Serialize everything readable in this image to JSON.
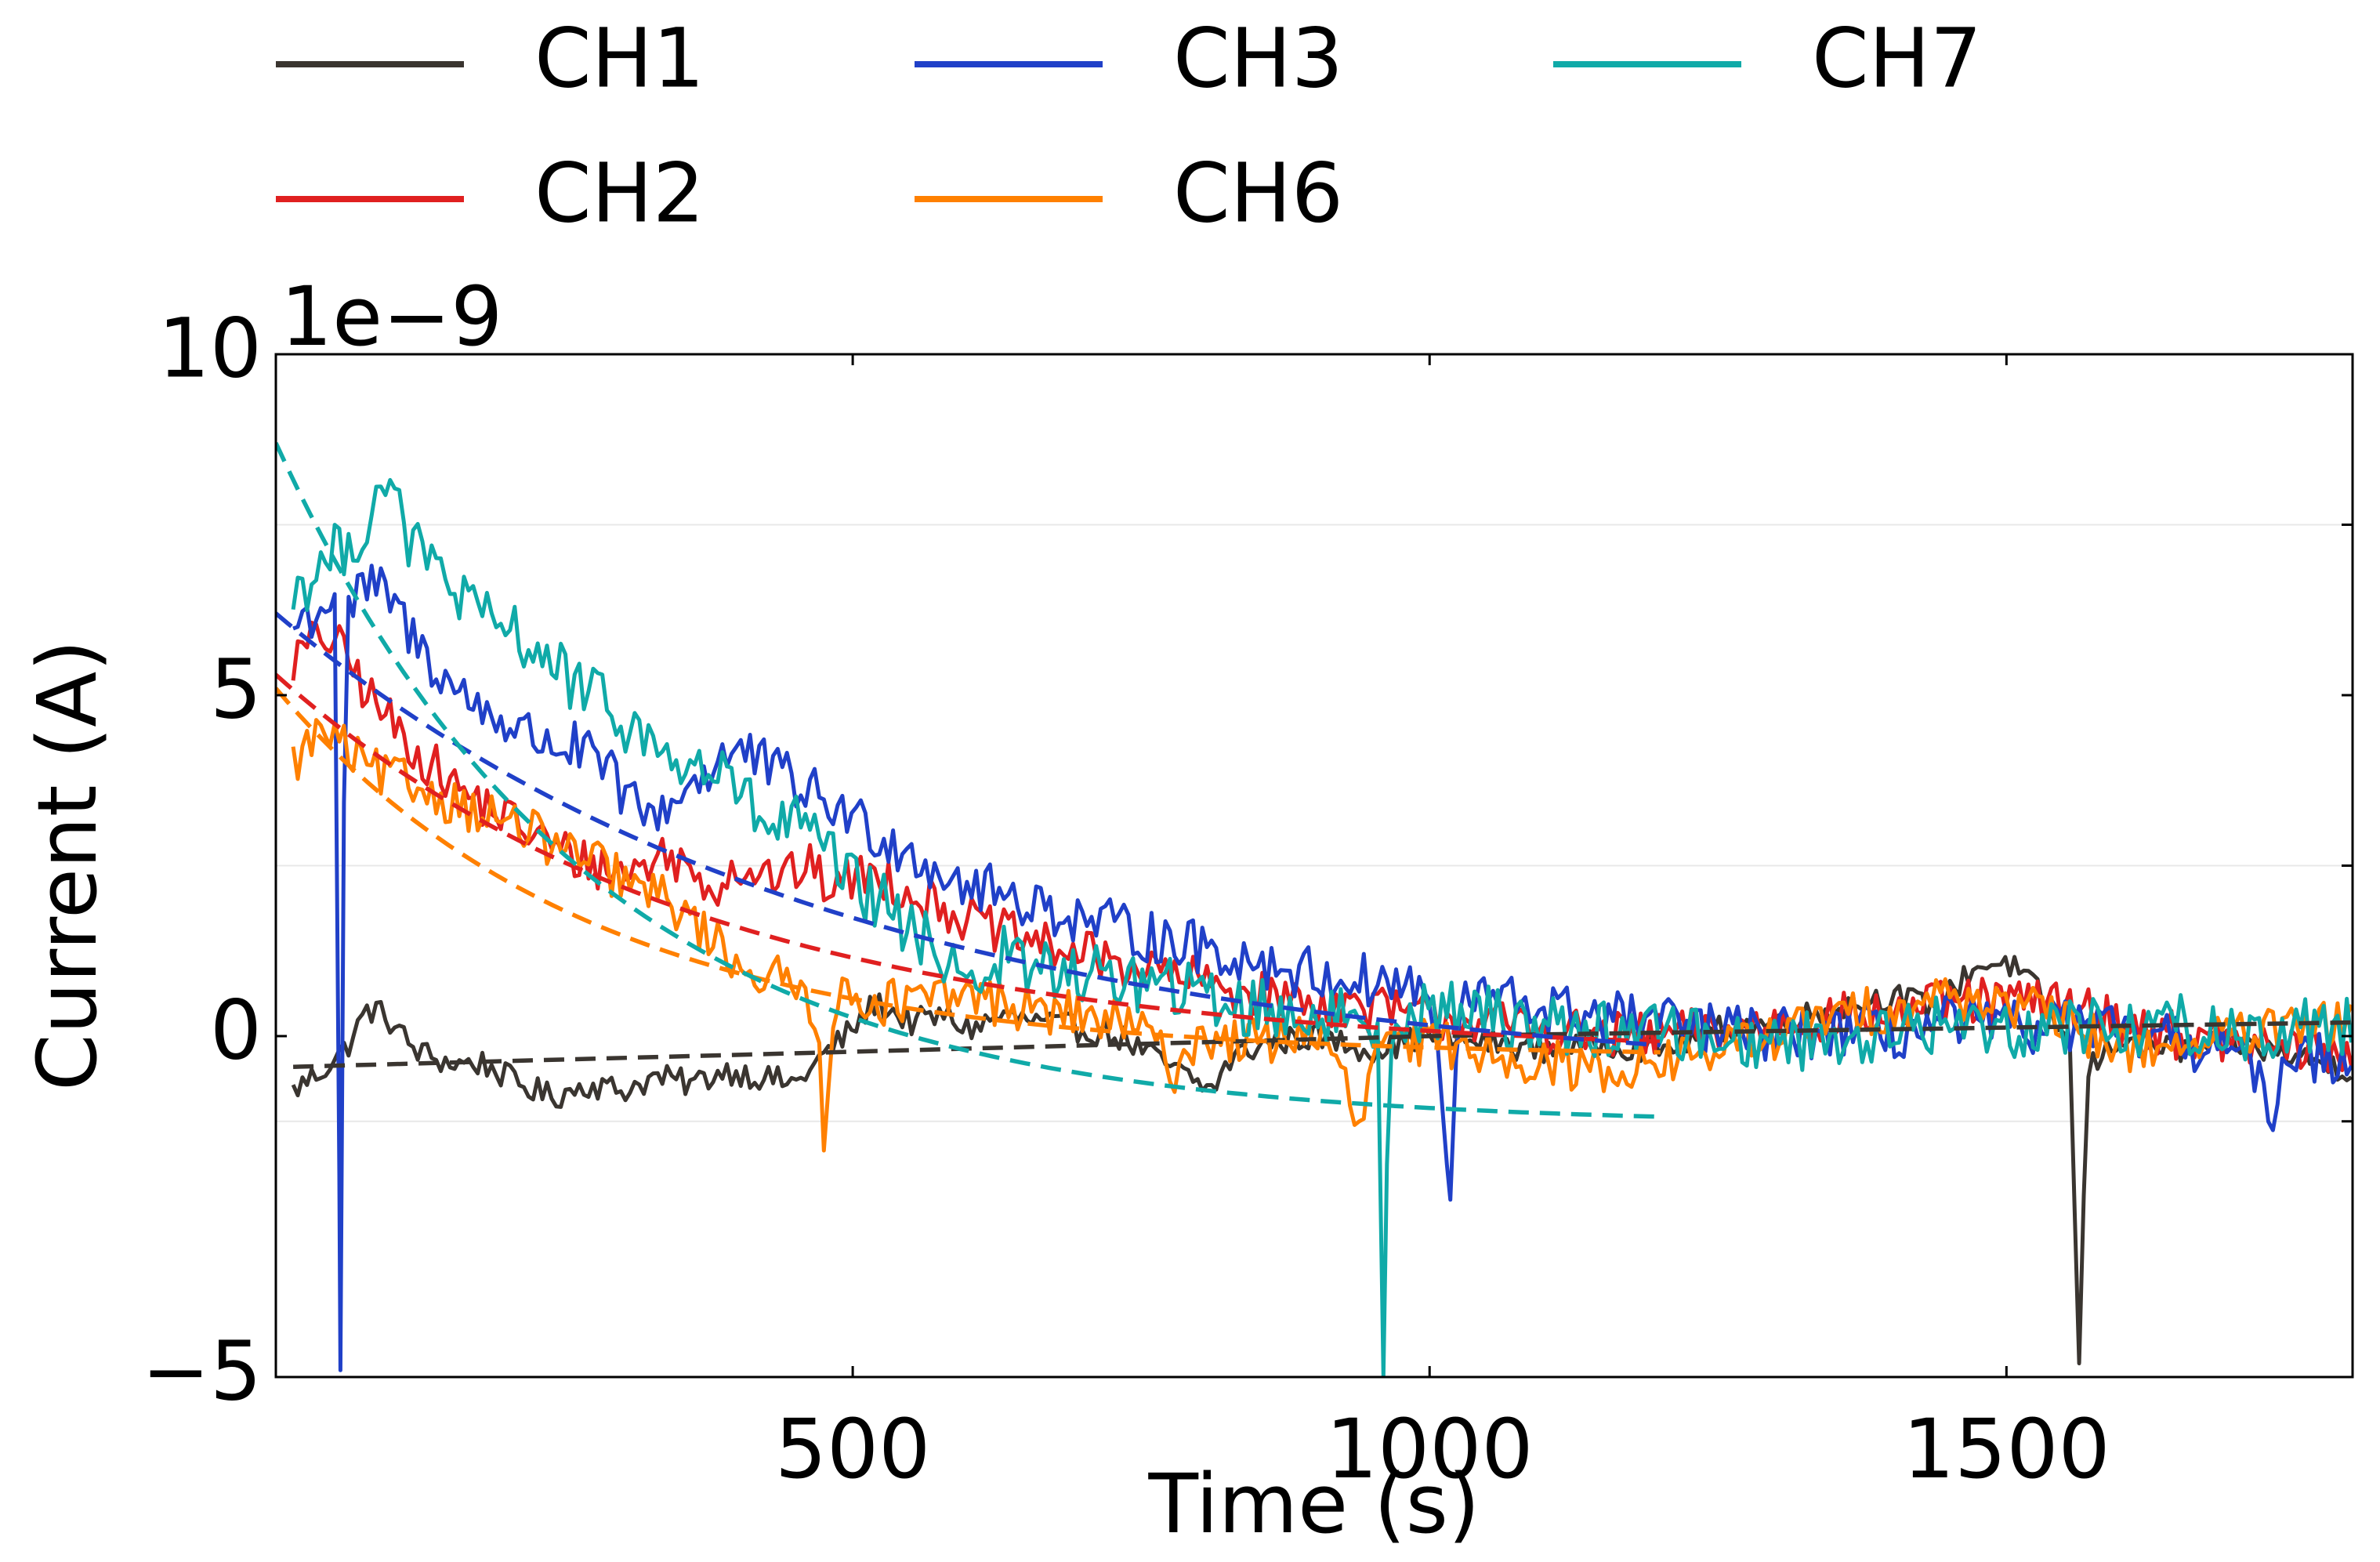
{
  "chart_data": {
    "type": "line",
    "title": "",
    "xlabel": "Time (s)",
    "ylabel": "Current (A)",
    "y_offset_label": "1e−9",
    "xlim": [
      0,
      1800
    ],
    "ylim": [
      -5,
      10
    ],
    "y_scale_factor": 1e-09,
    "xticks": [
      {
        "value": 500,
        "label": "500"
      },
      {
        "value": 1000,
        "label": "1000"
      },
      {
        "value": 1500,
        "label": "1500"
      }
    ],
    "yticks": [
      {
        "value": -5,
        "label": "−5"
      },
      {
        "value": 0,
        "label": "0"
      },
      {
        "value": 5,
        "label": "5"
      },
      {
        "value": 10,
        "label": "10"
      }
    ],
    "legend_position": "top-left, above plot, 3 columns",
    "grid": false,
    "series": [
      {
        "name": "CH1",
        "color": "#3a3530",
        "start_x": 15,
        "end_x": 1800,
        "points": [
          [
            15,
            -0.8
          ],
          [
            40,
            -0.5
          ],
          [
            60,
            -0.2
          ],
          [
            80,
            0.4
          ],
          [
            95,
            0.3
          ],
          [
            120,
            -0.2
          ],
          [
            150,
            -0.4
          ],
          [
            180,
            -0.4
          ],
          [
            210,
            -0.7
          ],
          [
            240,
            -0.9
          ],
          [
            270,
            -0.7
          ],
          [
            300,
            -0.8
          ],
          [
            330,
            -0.6
          ],
          [
            360,
            -0.7
          ],
          [
            390,
            -0.5
          ],
          [
            420,
            -0.6
          ],
          [
            450,
            -0.7
          ],
          [
            480,
            -0.2
          ],
          [
            500,
            0.1
          ],
          [
            520,
            0.5
          ],
          [
            550,
            0.2
          ],
          [
            580,
            0.3
          ],
          [
            600,
            0.1
          ],
          [
            630,
            0.3
          ],
          [
            660,
            0.2
          ],
          [
            700,
            0.1
          ],
          [
            730,
            0.0
          ],
          [
            760,
            -0.3
          ],
          [
            790,
            -0.6
          ],
          [
            810,
            -0.8
          ],
          [
            830,
            -0.3
          ],
          [
            860,
            -0.1
          ],
          [
            900,
            0.0
          ],
          [
            950,
            -0.2
          ],
          [
            1000,
            0.0
          ],
          [
            1050,
            -0.1
          ],
          [
            1100,
            -0.2
          ],
          [
            1150,
            -0.1
          ],
          [
            1200,
            -0.2
          ],
          [
            1250,
            0.1
          ],
          [
            1300,
            0.2
          ],
          [
            1350,
            0.4
          ],
          [
            1400,
            0.6
          ],
          [
            1440,
            0.4
          ],
          [
            1470,
            1.0
          ],
          [
            1500,
            1.1
          ],
          [
            1530,
            0.6
          ],
          [
            1555,
            -0.2
          ],
          [
            1563,
            -4.8
          ],
          [
            1570,
            -0.5
          ],
          [
            1600,
            0.0
          ],
          [
            1650,
            -0.2
          ],
          [
            1700,
            -0.1
          ],
          [
            1750,
            -0.3
          ],
          [
            1800,
            -0.5
          ]
        ],
        "noise": 0.2,
        "fit": {
          "type": "linear",
          "points": [
            [
              15,
              -0.45
            ],
            [
              1000,
              0.0
            ],
            [
              1800,
              0.2
            ]
          ],
          "end_x": 1800
        }
      },
      {
        "name": "CH2",
        "color": "#e02020",
        "start_x": 15,
        "end_x": 1800,
        "points": [
          [
            15,
            5.5
          ],
          [
            40,
            5.9
          ],
          [
            60,
            5.6
          ],
          [
            80,
            5.0
          ],
          [
            100,
            4.6
          ],
          [
            120,
            4.2
          ],
          [
            140,
            3.9
          ],
          [
            160,
            3.6
          ],
          [
            180,
            3.4
          ],
          [
            200,
            3.2
          ],
          [
            220,
            3.0
          ],
          [
            240,
            2.8
          ],
          [
            260,
            2.6
          ],
          [
            280,
            2.5
          ],
          [
            300,
            2.4
          ],
          [
            320,
            2.5
          ],
          [
            340,
            2.7
          ],
          [
            360,
            2.4
          ],
          [
            380,
            2.2
          ],
          [
            400,
            2.5
          ],
          [
            420,
            2.4
          ],
          [
            440,
            2.3
          ],
          [
            460,
            2.5
          ],
          [
            480,
            2.2
          ],
          [
            500,
            2.3
          ],
          [
            520,
            2.4
          ],
          [
            550,
            2.1
          ],
          [
            580,
            1.9
          ],
          [
            600,
            1.7
          ],
          [
            650,
            1.4
          ],
          [
            700,
            1.2
          ],
          [
            750,
            1.0
          ],
          [
            800,
            0.8
          ],
          [
            850,
            0.6
          ],
          [
            900,
            0.5
          ],
          [
            950,
            0.4
          ],
          [
            1000,
            0.3
          ],
          [
            1050,
            0.2
          ],
          [
            1100,
            0.1
          ],
          [
            1150,
            0.0
          ],
          [
            1200,
            0.0
          ],
          [
            1250,
            0.1
          ],
          [
            1300,
            0.2
          ],
          [
            1350,
            0.3
          ],
          [
            1400,
            0.3
          ],
          [
            1450,
            0.5
          ],
          [
            1500,
            0.5
          ],
          [
            1550,
            0.5
          ],
          [
            1600,
            0.2
          ],
          [
            1650,
            0.0
          ],
          [
            1700,
            -0.1
          ],
          [
            1750,
            -0.2
          ],
          [
            1800,
            -0.3
          ]
        ],
        "noise": 0.35,
        "fit": {
          "type": "exp",
          "A": 5.6,
          "tau": 370,
          "c": -0.3,
          "end_x": 1200
        }
      },
      {
        "name": "CH3",
        "color": "#2040c8",
        "start_x": 15,
        "end_x": 1800,
        "points": [
          [
            15,
            6.0
          ],
          [
            40,
            6.3
          ],
          [
            52,
            6.5
          ],
          [
            56,
            -4.9
          ],
          [
            60,
            6.2
          ],
          [
            80,
            6.6
          ],
          [
            100,
            6.4
          ],
          [
            120,
            5.8
          ],
          [
            140,
            5.4
          ],
          [
            160,
            5.0
          ],
          [
            180,
            4.8
          ],
          [
            200,
            4.6
          ],
          [
            220,
            4.4
          ],
          [
            240,
            4.3
          ],
          [
            260,
            4.2
          ],
          [
            280,
            4.0
          ],
          [
            300,
            3.6
          ],
          [
            320,
            3.2
          ],
          [
            340,
            3.4
          ],
          [
            360,
            3.7
          ],
          [
            380,
            4.0
          ],
          [
            400,
            4.2
          ],
          [
            420,
            4.0
          ],
          [
            440,
            3.8
          ],
          [
            460,
            3.6
          ],
          [
            480,
            3.4
          ],
          [
            500,
            3.2
          ],
          [
            520,
            3.0
          ],
          [
            540,
            2.8
          ],
          [
            560,
            2.6
          ],
          [
            580,
            2.4
          ],
          [
            600,
            2.2
          ],
          [
            650,
            2.0
          ],
          [
            700,
            1.7
          ],
          [
            750,
            1.5
          ],
          [
            800,
            1.3
          ],
          [
            850,
            1.1
          ],
          [
            900,
            0.9
          ],
          [
            950,
            0.8
          ],
          [
            1000,
            0.7
          ],
          [
            1018,
            -2.4
          ],
          [
            1025,
            0.5
          ],
          [
            1050,
            0.6
          ],
          [
            1100,
            0.4
          ],
          [
            1150,
            0.3
          ],
          [
            1200,
            0.2
          ],
          [
            1250,
            0.1
          ],
          [
            1300,
            0.0
          ],
          [
            1350,
            0.1
          ],
          [
            1400,
            0.0
          ],
          [
            1450,
            0.2
          ],
          [
            1500,
            0.1
          ],
          [
            1550,
            0.2
          ],
          [
            1600,
            0.0
          ],
          [
            1650,
            -0.1
          ],
          [
            1700,
            -0.2
          ],
          [
            1730,
            -1.1
          ],
          [
            1740,
            -0.3
          ],
          [
            1800,
            -0.3
          ]
        ],
        "noise": 0.4,
        "fit": {
          "type": "exp",
          "A": 6.9,
          "tau": 480,
          "c": -0.7,
          "end_x": 1200
        }
      },
      {
        "name": "CH6",
        "color": "#ff8000",
        "start_x": 15,
        "end_x": 1800,
        "points": [
          [
            15,
            4.0
          ],
          [
            40,
            4.5
          ],
          [
            60,
            4.2
          ],
          [
            80,
            3.9
          ],
          [
            100,
            3.8
          ],
          [
            130,
            3.6
          ],
          [
            160,
            3.4
          ],
          [
            190,
            3.2
          ],
          [
            220,
            3.0
          ],
          [
            250,
            2.7
          ],
          [
            280,
            2.5
          ],
          [
            300,
            2.3
          ],
          [
            320,
            2.1
          ],
          [
            340,
            2.0
          ],
          [
            360,
            1.7
          ],
          [
            380,
            1.4
          ],
          [
            400,
            1.1
          ],
          [
            420,
            0.9
          ],
          [
            440,
            0.8
          ],
          [
            460,
            0.6
          ],
          [
            470,
            0.3
          ],
          [
            476,
            -1.7
          ],
          [
            482,
            0.4
          ],
          [
            500,
            0.6
          ],
          [
            530,
            0.5
          ],
          [
            560,
            0.5
          ],
          [
            600,
            0.6
          ],
          [
            650,
            0.4
          ],
          [
            700,
            0.3
          ],
          [
            750,
            0.1
          ],
          [
            780,
            -0.5
          ],
          [
            800,
            0.0
          ],
          [
            850,
            -0.1
          ],
          [
            900,
            0.1
          ],
          [
            930,
            -0.8
          ],
          [
            940,
            -1.6
          ],
          [
            950,
            -0.2
          ],
          [
            1000,
            -0.1
          ],
          [
            1050,
            -0.2
          ],
          [
            1100,
            -0.4
          ],
          [
            1150,
            -0.5
          ],
          [
            1200,
            -0.4
          ],
          [
            1250,
            -0.2
          ],
          [
            1300,
            0.0
          ],
          [
            1350,
            0.3
          ],
          [
            1400,
            0.4
          ],
          [
            1450,
            0.6
          ],
          [
            1500,
            0.5
          ],
          [
            1550,
            0.2
          ],
          [
            1600,
            -0.2
          ],
          [
            1650,
            -0.1
          ],
          [
            1700,
            0.0
          ],
          [
            1750,
            0.1
          ],
          [
            1800,
            0.2
          ]
        ],
        "noise": 0.35,
        "fit": {
          "type": "exp",
          "A": 5.4,
          "tau": 270,
          "c": -0.3,
          "end_x": 1200
        }
      },
      {
        "name": "CH7",
        "color": "#10aaa8",
        "start_x": 15,
        "end_x": 1800,
        "points": [
          [
            15,
            6.5
          ],
          [
            40,
            6.9
          ],
          [
            60,
            7.2
          ],
          [
            80,
            7.5
          ],
          [
            95,
            8.3
          ],
          [
            110,
            7.4
          ],
          [
            130,
            7.0
          ],
          [
            150,
            6.7
          ],
          [
            170,
            6.2
          ],
          [
            190,
            6.0
          ],
          [
            210,
            5.9
          ],
          [
            230,
            5.6
          ],
          [
            250,
            5.3
          ],
          [
            270,
            5.0
          ],
          [
            290,
            4.8
          ],
          [
            310,
            4.5
          ],
          [
            330,
            4.2
          ],
          [
            350,
            4.0
          ],
          [
            370,
            3.9
          ],
          [
            390,
            3.8
          ],
          [
            410,
            3.4
          ],
          [
            430,
            3.0
          ],
          [
            450,
            3.2
          ],
          [
            470,
            2.8
          ],
          [
            490,
            2.4
          ],
          [
            510,
            2.1
          ],
          [
            530,
            1.9
          ],
          [
            550,
            1.5
          ],
          [
            570,
            1.3
          ],
          [
            590,
            1.1
          ],
          [
            610,
            0.8
          ],
          [
            630,
            1.2
          ],
          [
            650,
            1.0
          ],
          [
            700,
            0.9
          ],
          [
            750,
            0.8
          ],
          [
            800,
            0.6
          ],
          [
            850,
            0.4
          ],
          [
            900,
            0.3
          ],
          [
            955,
            0.2
          ],
          [
            960,
            -5.0
          ],
          [
            965,
            0.2
          ],
          [
            1000,
            0.4
          ],
          [
            1050,
            0.3
          ],
          [
            1100,
            0.2
          ],
          [
            1150,
            0.1
          ],
          [
            1200,
            0.1
          ],
          [
            1250,
            0.0
          ],
          [
            1300,
            -0.1
          ],
          [
            1350,
            0.0
          ],
          [
            1400,
            0.0
          ],
          [
            1450,
            0.2
          ],
          [
            1500,
            0.1
          ],
          [
            1550,
            0.2
          ],
          [
            1600,
            0.1
          ],
          [
            1650,
            0.2
          ],
          [
            1700,
            0.0
          ],
          [
            1750,
            0.1
          ],
          [
            1800,
            0.2
          ]
        ],
        "noise": 0.45,
        "fit": {
          "type": "exp",
          "A": 10.0,
          "tau": 270,
          "c": -1.3,
          "end_x": 1200
        }
      }
    ]
  },
  "legend": {
    "items": [
      {
        "label": "CH1",
        "color": "#3a3530"
      },
      {
        "label": "CH2",
        "color": "#e02020"
      },
      {
        "label": "CH3",
        "color": "#2040c8"
      },
      {
        "label": "CH6",
        "color": "#ff8000"
      },
      {
        "label": "CH7",
        "color": "#10aaa8"
      }
    ]
  }
}
